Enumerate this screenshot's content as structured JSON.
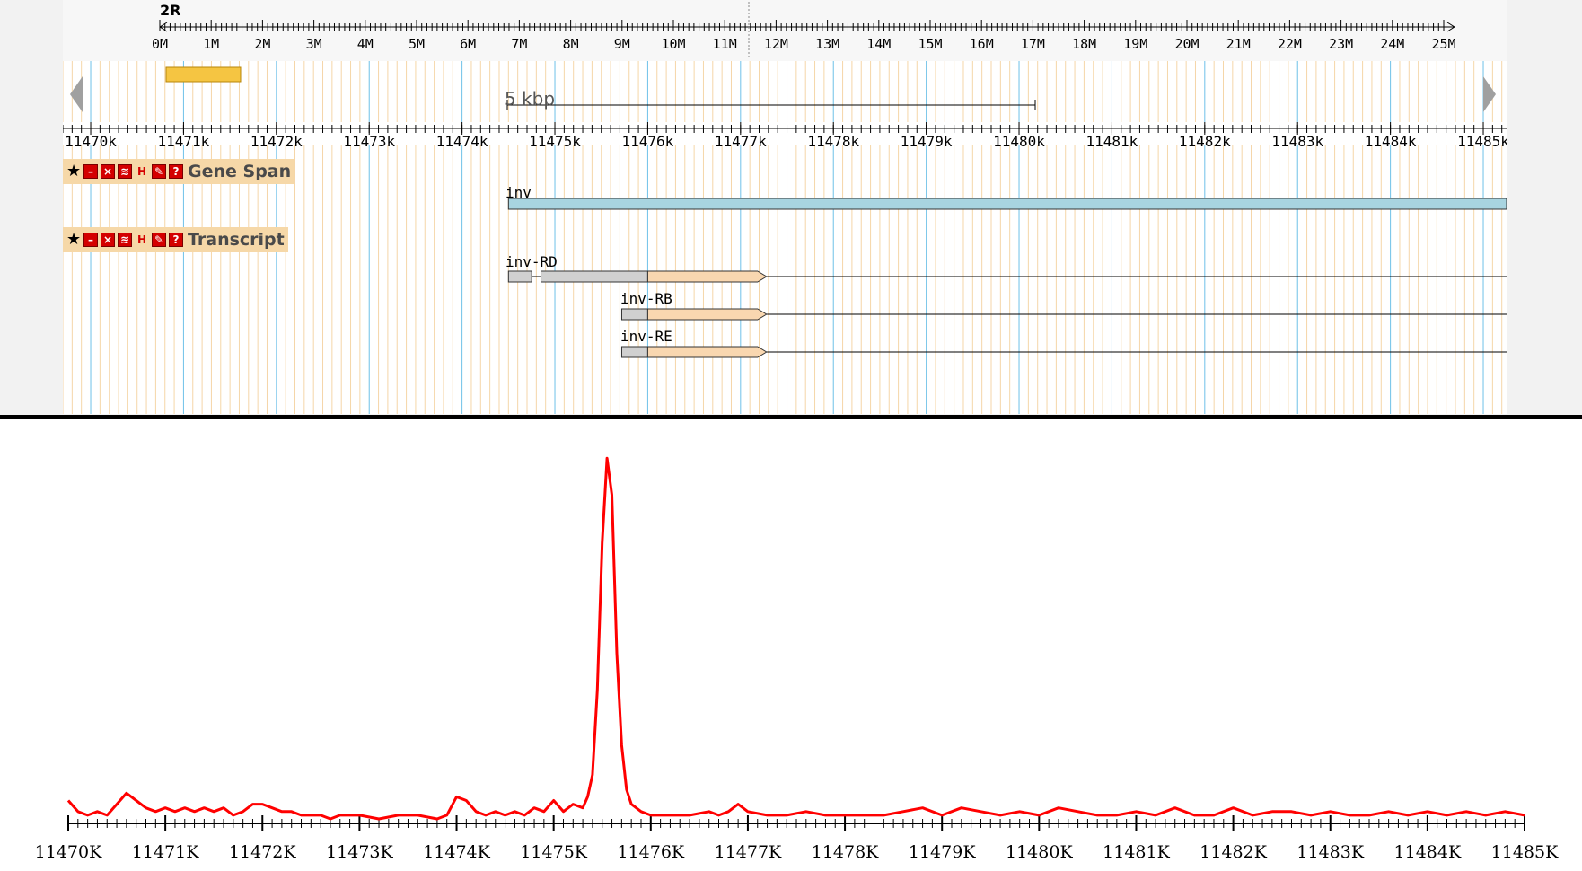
{
  "overview": {
    "chromosome": "2R",
    "ticks": [
      "0M",
      "1M",
      "2M",
      "3M",
      "4M",
      "5M",
      "6M",
      "7M",
      "8M",
      "9M",
      "10M",
      "11M",
      "12M",
      "13M",
      "14M",
      "15M",
      "16M",
      "17M",
      "18M",
      "19M",
      "20M",
      "21M",
      "22M",
      "23M",
      "24M",
      "25M"
    ]
  },
  "scale_bar": {
    "label": "5 kbp"
  },
  "detail_ruler": {
    "ticks": [
      "11470k",
      "11471k",
      "11472k",
      "11473k",
      "11474k",
      "11475k",
      "11476k",
      "11477k",
      "11478k",
      "11479k",
      "11480k",
      "11481k",
      "11482k",
      "11483k",
      "11484k",
      "11485k"
    ]
  },
  "tracks": [
    {
      "name": "Gene Span",
      "icons": [
        "star-icon",
        "minimize-icon",
        "close-icon",
        "rss-icon",
        "bookmark-icon",
        "configure-icon",
        "help-icon"
      ]
    },
    {
      "name": "Transcript",
      "icons": [
        "star-icon",
        "minimize-icon",
        "close-icon",
        "rss-icon",
        "bookmark-icon",
        "configure-icon",
        "help-icon"
      ]
    }
  ],
  "features": {
    "gene": {
      "label": "inv",
      "start_kb": 11474.5,
      "end_kb": 11485.3
    },
    "transcripts": [
      {
        "label": "inv-RD",
        "utr5": [
          [
            11474.5,
            11474.75
          ],
          [
            11474.85,
            11476.0
          ]
        ],
        "cds_start": 11476.0,
        "cds_end": 11477.28,
        "line_end": 11485.3
      },
      {
        "label": "inv-RB",
        "utr5": [
          [
            11475.72,
            11476.0
          ]
        ],
        "cds_start": 11476.0,
        "cds_end": 11477.28,
        "line_end": 11485.3
      },
      {
        "label": "inv-RE",
        "utr5": [
          [
            11475.72,
            11476.0
          ]
        ],
        "cds_start": 11476.0,
        "cds_end": 11477.28,
        "line_end": 11485.3
      }
    ]
  },
  "signal_axis": {
    "ticks": [
      "11470K",
      "11471K",
      "11472K",
      "11473K",
      "11474K",
      "11475K",
      "11476K",
      "11477K",
      "11478K",
      "11479K",
      "11480K",
      "11481K",
      "11482K",
      "11483K",
      "11484K",
      "11485K"
    ]
  },
  "chart_data": {
    "type": "line",
    "x_unit": "kb",
    "xlim": [
      11470,
      11485
    ],
    "ylim": [
      0,
      100
    ],
    "series": [
      {
        "color": "#ff0000",
        "x": [
          11470.0,
          11470.1,
          11470.2,
          11470.3,
          11470.4,
          11470.5,
          11470.6,
          11470.7,
          11470.8,
          11470.9,
          11471.0,
          11471.1,
          11471.2,
          11471.3,
          11471.4,
          11471.5,
          11471.6,
          11471.7,
          11471.8,
          11471.9,
          11472.0,
          11472.1,
          11472.2,
          11472.3,
          11472.4,
          11472.5,
          11472.6,
          11472.7,
          11472.8,
          11472.9,
          11473.0,
          11473.2,
          11473.4,
          11473.6,
          11473.8,
          11473.9,
          11474.0,
          11474.1,
          11474.2,
          11474.3,
          11474.4,
          11474.5,
          11474.6,
          11474.7,
          11474.8,
          11474.9,
          11475.0,
          11475.1,
          11475.2,
          11475.3,
          11475.35,
          11475.4,
          11475.45,
          11475.5,
          11475.55,
          11475.6,
          11475.65,
          11475.7,
          11475.75,
          11475.8,
          11475.9,
          11476.0,
          11476.2,
          11476.4,
          11476.6,
          11476.7,
          11476.8,
          11476.9,
          11477.0,
          11477.2,
          11477.4,
          11477.6,
          11477.8,
          11478.0,
          11478.2,
          11478.4,
          11478.6,
          11478.8,
          11479.0,
          11479.2,
          11479.4,
          11479.6,
          11479.8,
          11480.0,
          11480.2,
          11480.4,
          11480.6,
          11480.8,
          11481.0,
          11481.2,
          11481.4,
          11481.6,
          11481.8,
          11482.0,
          11482.2,
          11482.4,
          11482.6,
          11482.8,
          11483.0,
          11483.2,
          11483.4,
          11483.6,
          11483.8,
          11484.0,
          11484.2,
          11484.4,
          11484.6,
          11484.8,
          11485.0
        ],
        "y": [
          5,
          2,
          1,
          2,
          1,
          4,
          7,
          5,
          3,
          2,
          3,
          2,
          3,
          2,
          3,
          2,
          3,
          1,
          2,
          4,
          4,
          3,
          2,
          2,
          1,
          1,
          1,
          0,
          1,
          1,
          1,
          0,
          1,
          1,
          0,
          1,
          6,
          5,
          2,
          1,
          2,
          1,
          2,
          1,
          3,
          2,
          5,
          2,
          4,
          3,
          6,
          12,
          35,
          75,
          98,
          88,
          45,
          20,
          8,
          4,
          2,
          1,
          1,
          1,
          2,
          1,
          2,
          4,
          2,
          1,
          1,
          2,
          1,
          1,
          1,
          1,
          2,
          3,
          1,
          3,
          2,
          1,
          2,
          1,
          3,
          2,
          1,
          1,
          2,
          1,
          3,
          1,
          1,
          3,
          1,
          2,
          2,
          1,
          2,
          1,
          1,
          2,
          1,
          2,
          1,
          2,
          1,
          2,
          1
        ]
      }
    ]
  }
}
